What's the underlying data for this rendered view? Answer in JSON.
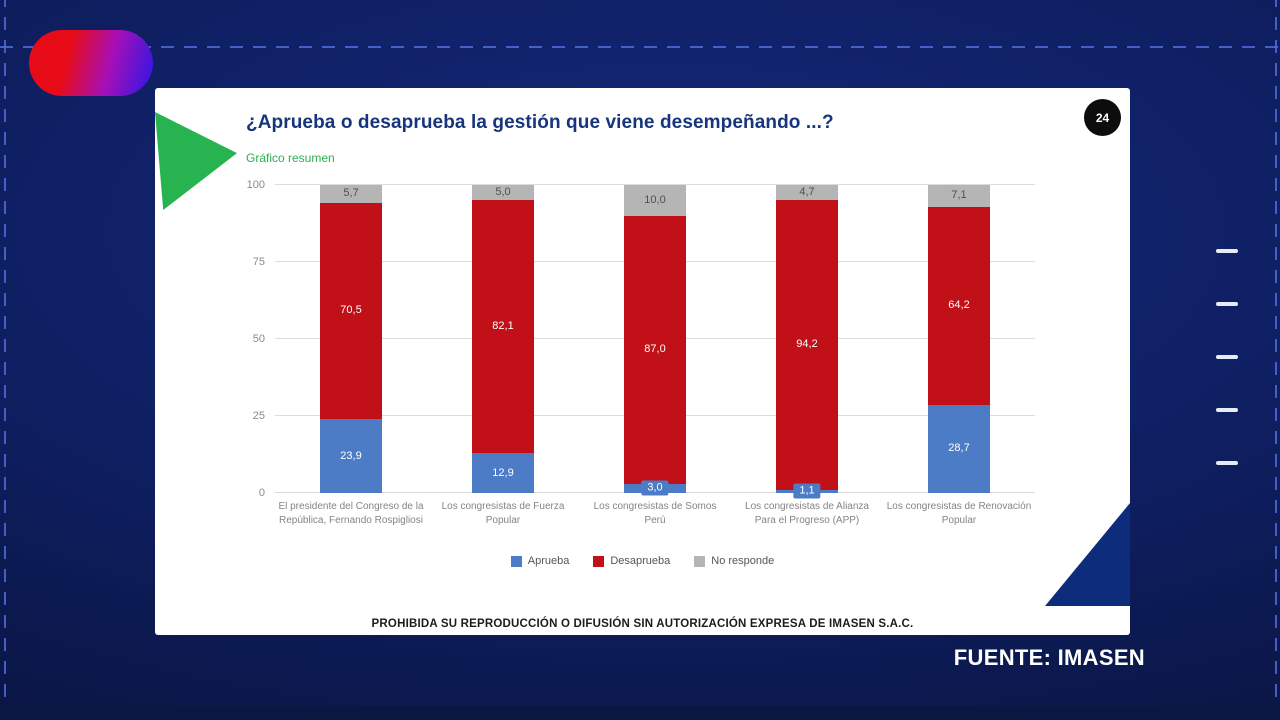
{
  "page": {
    "source_label": "FUENTE: IMASEN"
  },
  "card": {
    "slide_number": "24",
    "title": "¿Aprueba o desaprueba la gestión que viene desempeñando ...?",
    "subtitle": "Gráfico resumen",
    "disclaimer": "PROHIBIDA SU REPRODUCCIÓN O DIFUSIÓN SIN AUTORIZACIÓN EXPRESA DE IMASEN S.A.C."
  },
  "colors": {
    "aprueba_blue": "#4d7cc7",
    "desaprueba_red": "#c11018",
    "no_responde_gray": "#b5b5b5",
    "title_navy": "#17357c",
    "accent_green": "#27b34f",
    "background_navy": "#0e1e60"
  },
  "chart_data": {
    "type": "bar",
    "stacked": true,
    "title": "¿Aprueba o desaprueba la gestión que viene desempeñando ...?",
    "subtitle": "Gráfico resumen",
    "categories": [
      "El presidente del Congreso de la República, Fernando Rospigliosi",
      "Los congresistas de Fuerza Popular",
      "Los congresistas de Somos Perú",
      "Los congresistas de Alianza Para el Progreso (APP)",
      "Los congresistas de Renovación Popular"
    ],
    "series": [
      {
        "name": "Aprueba",
        "color": "#4d7cc7",
        "values": [
          23.9,
          12.9,
          3.0,
          1.1,
          28.7
        ],
        "labels": [
          "23,9",
          "12,9",
          "3,0",
          "1,1",
          "28,7"
        ]
      },
      {
        "name": "Desaprueba",
        "color": "#c11018",
        "values": [
          70.5,
          82.1,
          87.0,
          94.2,
          64.2
        ],
        "labels": [
          "70,5",
          "82,1",
          "87,0",
          "94,2",
          "64,2"
        ]
      },
      {
        "name": "No responde",
        "color": "#b5b5b5",
        "values": [
          5.7,
          5.0,
          10.0,
          4.7,
          7.1
        ],
        "labels": [
          "5,7",
          "5,0",
          "10,0",
          "4,7",
          "7,1"
        ]
      }
    ],
    "y_ticks": [
      "0",
      "25",
      "50",
      "75",
      "100"
    ],
    "ylim": [
      0,
      100
    ],
    "grid": true,
    "legend_position": "bottom"
  }
}
